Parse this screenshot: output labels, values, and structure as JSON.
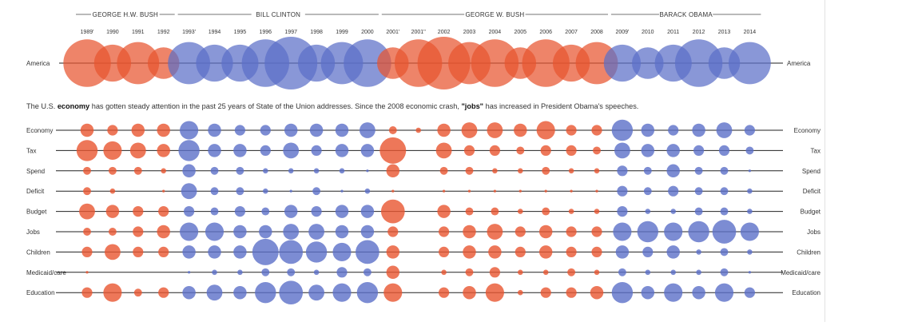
{
  "colors": {
    "republican": "#e8552f",
    "democrat": "#5b6fc8",
    "line": "#222222",
    "divider": "#555555"
  },
  "chart_data": {
    "type": "scatter",
    "x": [
      "1989'",
      "1990",
      "1991",
      "1992",
      "1993'",
      "1994",
      "1995",
      "1996",
      "1997",
      "1998",
      "1999",
      "2000",
      "2001'",
      "2001''",
      "2002",
      "2003",
      "2004",
      "2005",
      "2006",
      "2007",
      "2008",
      "2009'",
      "2010",
      "2011",
      "2012",
      "2013",
      "2014"
    ],
    "party": [
      "R",
      "R",
      "R",
      "R",
      "D",
      "D",
      "D",
      "D",
      "D",
      "D",
      "D",
      "D",
      "R",
      "R",
      "R",
      "R",
      "R",
      "R",
      "R",
      "R",
      "R",
      "D",
      "D",
      "D",
      "D",
      "D",
      "D"
    ],
    "presidents": [
      {
        "name": "GEORGE H.W. BUSH",
        "from": 0,
        "to": 3
      },
      {
        "name": "BILL CLINTON",
        "from": 4,
        "to": 11
      },
      {
        "name": "GEORGE W. BUSH",
        "from": 12,
        "to": 20
      },
      {
        "name": "BARACK OBAMA",
        "from": 21,
        "to": 26
      }
    ],
    "top_row": {
      "label": "America",
      "values": [
        9,
        7,
        8,
        6,
        8,
        7,
        7,
        9,
        10,
        7,
        8,
        9,
        6,
        9,
        10,
        8,
        9,
        6,
        9,
        7,
        8,
        7,
        6,
        7,
        9,
        6,
        8
      ]
    },
    "caption": {
      "part1": "The U.S. ",
      "bold1": "economy",
      "part2": " has gotten steady attention in the past 25 years of State of the Union addresses. Since the 2008 economic crash, ",
      "bold2": "\"jobs\"",
      "part3": " has increased in President Obama's speeches."
    },
    "series": [
      {
        "name": "Economy",
        "values": [
          5,
          4,
          5,
          5,
          7,
          5,
          4,
          4,
          5,
          5,
          5,
          6,
          3,
          2,
          5,
          6,
          6,
          5,
          7,
          4,
          4,
          8,
          5,
          4,
          5,
          6,
          4
        ]
      },
      {
        "name": "Tax",
        "values": [
          8,
          7,
          6,
          5,
          8,
          5,
          5,
          4,
          6,
          4,
          5,
          5,
          10,
          0,
          6,
          4,
          4,
          3,
          4,
          4,
          3,
          6,
          5,
          5,
          4,
          4,
          3
        ]
      },
      {
        "name": "Spend",
        "values": [
          3,
          3,
          3,
          2,
          5,
          3,
          3,
          2,
          2,
          2,
          2,
          1,
          5,
          0,
          3,
          3,
          2,
          2,
          3,
          2,
          2,
          4,
          3,
          5,
          3,
          3,
          1
        ]
      },
      {
        "name": "Deficit",
        "values": [
          3,
          2,
          0,
          1,
          6,
          3,
          3,
          2,
          1,
          3,
          1,
          2,
          1,
          0,
          1,
          1,
          1,
          1,
          1,
          1,
          1,
          4,
          3,
          4,
          3,
          3,
          2
        ]
      },
      {
        "name": "Budget",
        "values": [
          6,
          5,
          4,
          4,
          4,
          3,
          4,
          3,
          5,
          4,
          5,
          5,
          9,
          0,
          5,
          3,
          3,
          2,
          3,
          2,
          2,
          4,
          2,
          2,
          3,
          3,
          2
        ]
      },
      {
        "name": "Jobs",
        "values": [
          3,
          3,
          4,
          5,
          7,
          7,
          5,
          5,
          6,
          6,
          5,
          5,
          4,
          0,
          4,
          5,
          6,
          4,
          5,
          4,
          4,
          7,
          8,
          7,
          8,
          9,
          7
        ]
      },
      {
        "name": "Children",
        "values": [
          4,
          6,
          4,
          4,
          5,
          5,
          5,
          10,
          9,
          8,
          7,
          9,
          5,
          0,
          4,
          5,
          5,
          4,
          5,
          4,
          4,
          5,
          4,
          5,
          2,
          3,
          2
        ]
      },
      {
        "name": "Medicaid/care",
        "values": [
          1,
          0,
          0,
          0,
          1,
          2,
          2,
          3,
          3,
          2,
          4,
          3,
          5,
          0,
          2,
          3,
          4,
          2,
          2,
          3,
          2,
          3,
          2,
          2,
          2,
          3,
          1
        ]
      },
      {
        "name": "Education",
        "values": [
          4,
          7,
          3,
          4,
          5,
          6,
          5,
          8,
          9,
          6,
          7,
          8,
          7,
          0,
          4,
          5,
          7,
          2,
          4,
          4,
          5,
          8,
          5,
          7,
          5,
          7,
          4
        ]
      }
    ]
  }
}
